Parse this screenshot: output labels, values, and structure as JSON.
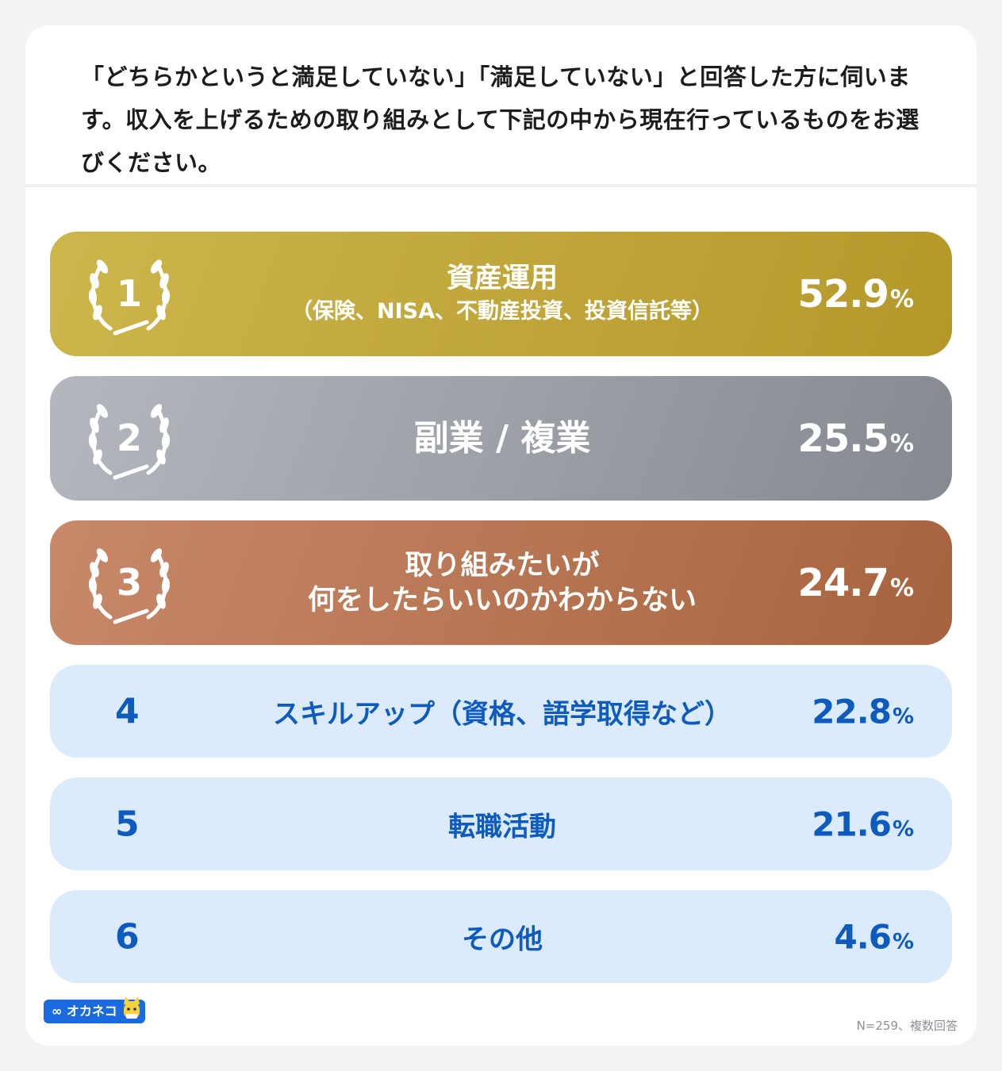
{
  "question": "「どちらかというと満足していない」「満足していない」と回答した方に伺います。収入を上げるための取り組みとして下記の中から現在行っているものをお選びください。",
  "chart_data": {
    "type": "table",
    "title": "「どちらかというと満足していない」「満足していない」と回答した方に伺います。収入を上げるための取り組みとして下記の中から現在行っているものをお選びください。",
    "unit": "%",
    "categories": [
      "資産運用（保険、NISA、不動産投資、投資信託等）",
      "副業 / 複業",
      "取り組みたいが何をしたらいいのかわからない",
      "スキルアップ（資格、語学取得など）",
      "転職活動",
      "その他"
    ],
    "values": [
      52.9,
      25.5,
      24.7,
      22.8,
      21.6,
      4.6
    ],
    "ranks": [
      1,
      2,
      3,
      4,
      5,
      6
    ]
  },
  "rows": [
    {
      "rank": "1",
      "label_main": "資産運用",
      "label_sub": "（保険、NISA、不動産投資、投資信託等）",
      "value": "52.9",
      "unit": "%",
      "color": "#c2a83a"
    },
    {
      "rank": "2",
      "label_main": "副業 / 複業",
      "value": "25.5",
      "unit": "%",
      "color": "#9ea2a8"
    },
    {
      "rank": "3",
      "label_line1": "取り組みたいが",
      "label_line2": "何をしたらいいのかわからない",
      "value": "24.7",
      "unit": "%",
      "color": "#b8764f"
    },
    {
      "rank": "4",
      "label": "スキルアップ（資格、語学取得など）",
      "value": "22.8",
      "unit": "%",
      "color": "#0e5bbf"
    },
    {
      "rank": "5",
      "label": "転職活動",
      "value": "21.6",
      "unit": "%",
      "color": "#0e5bbf"
    },
    {
      "rank": "6",
      "label": "その他",
      "value": "4.6",
      "unit": "%",
      "color": "#0e5bbf"
    }
  ],
  "logo": {
    "text": "オカネコ"
  },
  "footnote": "N=259、複数回答"
}
